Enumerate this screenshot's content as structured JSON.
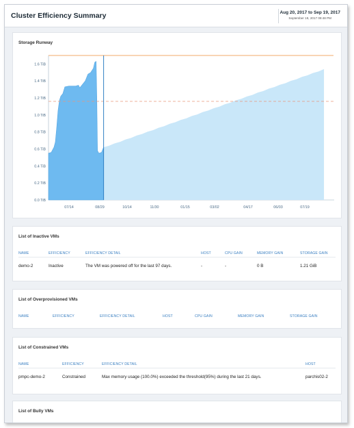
{
  "header": {
    "title": "Cluster Efficiency Summary",
    "date_range": "Aug 20, 2017 to Sep 19, 2017",
    "generated": "September 19, 2017 09:48 PM"
  },
  "chart": {
    "title": "Storage Runway",
    "chart_data": {
      "type": "area",
      "y_unit": "TiB",
      "ylim": [
        0,
        1.7
      ],
      "y_ticks": [
        "0.0 TiB",
        "0.2 TiB",
        "0.4 TiB",
        "0.6 TiB",
        "0.8 TiB",
        "1.0 TiB",
        "1.2 TiB",
        "1.4 TiB",
        "1.6 TiB"
      ],
      "x_ticks": [
        "07/14",
        "08/29",
        "10/14",
        "11/30",
        "01/15",
        "03/02",
        "04/17",
        "06/03",
        "07/19"
      ],
      "capacity_line": 1.7,
      "threshold_line": 1.16,
      "series": [
        {
          "kind": "historical",
          "color": "#6ebaf0",
          "points": [
            [
              0,
              0.55
            ],
            [
              4,
              0.56
            ],
            [
              8,
              0.62
            ],
            [
              10,
              0.68
            ],
            [
              12,
              0.85
            ],
            [
              14,
              1.05
            ],
            [
              16,
              1.17
            ],
            [
              18,
              1.22
            ],
            [
              21,
              1.25
            ],
            [
              24,
              1.33
            ],
            [
              30,
              1.34
            ],
            [
              40,
              1.34
            ],
            [
              44,
              1.35
            ],
            [
              46,
              1.32
            ],
            [
              50,
              1.36
            ],
            [
              54,
              1.4
            ],
            [
              58,
              1.48
            ],
            [
              62,
              1.5
            ],
            [
              66,
              1.55
            ],
            [
              68,
              1.62
            ],
            [
              70,
              1.63
            ],
            [
              71,
              1.2
            ],
            [
              72,
              0.58
            ],
            [
              74,
              0.55
            ],
            [
              78,
              0.56
            ],
            [
              80,
              0.6
            ],
            [
              81,
              0.62
            ]
          ]
        },
        {
          "kind": "forecast",
          "color": "#c9e7f9",
          "points": [
            [
              81,
              0.62
            ],
            [
              405,
              1.54
            ]
          ]
        }
      ],
      "marker_x": 81
    }
  },
  "inactive": {
    "title": "List of Inactive VMs",
    "headers": [
      "NAME",
      "EFFICIENCY",
      "EFFICIENCY DETAIL",
      "HOST",
      "CPU GAIN",
      "MEMORY GAIN",
      "STORAGE GAIN"
    ],
    "row": [
      "demo-2",
      "Inactive",
      "The VM was powered off for the last 97 days.",
      "-",
      "-",
      "0 B",
      "1.21 GiB"
    ]
  },
  "overprovisioned": {
    "title": "List of Overprovisioned VMs",
    "headers": [
      "NAME",
      "EFFICIENCY",
      "EFFICIENCY DETAIL",
      "HOST",
      "CPU GAIN",
      "MEMORY GAIN",
      "STORAGE GAIN"
    ]
  },
  "constrained": {
    "title": "List of Constrained VMs",
    "headers": [
      "NAME",
      "EFFICIENCY",
      "EFFICIENCY DETAIL",
      "HOST"
    ],
    "row": [
      "pmpc-demo-2",
      "Constrained",
      "Max memory usage (100.0%) exceeded the threshold(95%) during the last 21 days.",
      "parchis02-2"
    ]
  },
  "bully": {
    "title": "List of Bully VMs"
  },
  "colors": {
    "accent": "#3a7fc1",
    "historical_fill": "#6ebaf0",
    "forecast_fill": "#c9e7f9",
    "capacity_line": "#f0a86a",
    "threshold_line": "#e9967a"
  }
}
